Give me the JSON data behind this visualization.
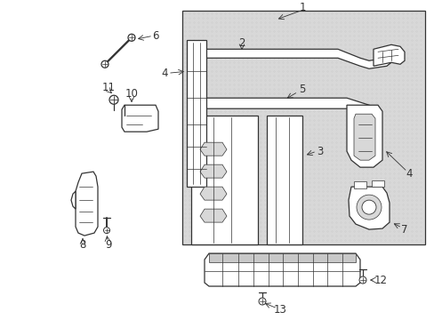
{
  "bg_color": "#ffffff",
  "line_color": "#333333",
  "light_gray": "#c8c8c8",
  "mid_gray": "#b0b0b0",
  "dot_fill": "#d8d8d8",
  "lw": 0.9,
  "lw_thin": 0.5,
  "lw_thick": 1.4,
  "fs_label": 8.5
}
